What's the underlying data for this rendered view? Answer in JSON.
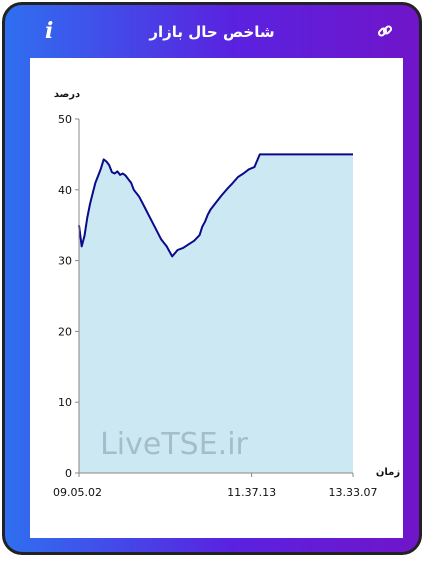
{
  "header": {
    "title": "شاخص حال بازار",
    "info_icon": "info-icon",
    "link_icon": "link-icon"
  },
  "chart_data": {
    "type": "area",
    "ylabel": "درصد",
    "xlabel": "زمان",
    "ylim": [
      0,
      50
    ],
    "yticks": [
      0,
      10,
      20,
      30,
      40,
      50
    ],
    "xlim": [
      0,
      100
    ],
    "xticks": [
      {
        "x": 0,
        "label": "09.05.02"
      },
      {
        "x": 63,
        "label": "11.37.13"
      },
      {
        "x": 100,
        "label": "13.33.07"
      }
    ],
    "watermark": "LiveTSE.ir",
    "colors": {
      "line": "#0a0a8a",
      "fill": "#cce8f3"
    },
    "series": [
      {
        "x": [
          0,
          1,
          2,
          3,
          4,
          5,
          6,
          7,
          8,
          9,
          10,
          11,
          12,
          13,
          14,
          15,
          16,
          17,
          18,
          19,
          20,
          22,
          24,
          26,
          28,
          30,
          32,
          34,
          36,
          38,
          40,
          42,
          44,
          45,
          46,
          47,
          48,
          50,
          52,
          54,
          56,
          58,
          60,
          62,
          64,
          66,
          68,
          70,
          72,
          74,
          76,
          78,
          80,
          81,
          82,
          84,
          86,
          88,
          90,
          92,
          94,
          96,
          98,
          100
        ],
        "y": [
          35,
          32,
          33.5,
          36,
          38,
          39.5,
          41,
          42,
          43,
          44.3,
          44,
          43.5,
          42.5,
          42.3,
          42.6,
          42.1,
          42.3,
          42,
          41.5,
          41,
          40,
          39,
          37.5,
          36,
          34.5,
          33,
          32,
          30.6,
          31.5,
          31.8,
          32.3,
          32.8,
          33.6,
          34.8,
          35.5,
          36.5,
          37.2,
          38.2,
          39.2,
          40.1,
          40.9,
          41.8,
          42.3,
          42.9,
          43.2,
          45,
          45,
          45,
          45,
          45,
          45,
          45,
          45,
          45,
          45,
          45,
          45,
          45,
          45,
          45,
          45,
          45,
          45,
          45
        ]
      }
    ]
  }
}
